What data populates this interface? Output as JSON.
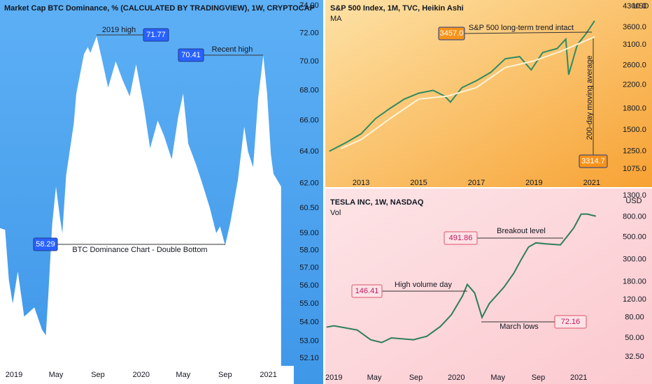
{
  "chart_data": [
    {
      "type": "area",
      "title": "Market Cap BTC Dominance, % (CALCULATED BY TRADINGVIEW), 1W, CRYPTOCAP",
      "x": [
        2018.89,
        2018.93,
        2018.96,
        2018.99,
        2019.03,
        2019.08,
        2019.16,
        2019.22,
        2019.25,
        2019.27,
        2019.3,
        2019.33,
        2019.36,
        2019.38,
        2019.41,
        2019.47,
        2019.49,
        2019.55,
        2019.58,
        2019.6,
        2019.65,
        2019.69,
        2019.74,
        2019.8,
        2019.85,
        2019.91,
        2019.96,
        2020.02,
        2020.07,
        2020.13,
        2020.18,
        2020.24,
        2020.29,
        2020.33,
        2020.37,
        2020.43,
        2020.48,
        2020.54,
        2020.59,
        2020.62,
        2020.66,
        2020.7,
        2020.76,
        2020.81,
        2020.84,
        2020.88,
        2020.92,
        2020.96,
        2020.99,
        2021.02,
        2021.04,
        2021.1
      ],
      "values": [
        59.3,
        59.2,
        56.3,
        55.0,
        56.8,
        54.3,
        54.8,
        53.6,
        53.3,
        55.5,
        59.5,
        61.8,
        60.0,
        59.0,
        62.5,
        65.8,
        67.8,
        70.5,
        71.0,
        70.6,
        71.77,
        70.2,
        68.2,
        70.0,
        68.8,
        67.6,
        69.8,
        67.0,
        64.2,
        66.0,
        65.0,
        63.5,
        66.2,
        67.8,
        64.5,
        63.2,
        62.0,
        60.5,
        59.0,
        59.4,
        58.29,
        59.6,
        62.2,
        65.6,
        64.0,
        63.0,
        67.5,
        70.41,
        67.8,
        63.8,
        62.6,
        61.8
      ],
      "color": "#ffffff",
      "log_scale": true,
      "xlim": [
        2018.89,
        2021.2
      ],
      "xticks": [
        2019,
        {
          "value": 2019.33,
          "label": "May"
        },
        {
          "value": 2019.66,
          "label": "Sep"
        },
        2020,
        {
          "value": 2020.33,
          "label": "May"
        },
        {
          "value": 2020.66,
          "label": "Sep"
        },
        2021
      ],
      "ylim": [
        52.1,
        74
      ],
      "yticks": [
        {
          "value": 74,
          "label": "74.00"
        },
        {
          "value": 72,
          "label": "72.00"
        },
        {
          "value": 70,
          "label": "70.00"
        },
        {
          "value": 68,
          "label": "68.00"
        },
        {
          "value": 66,
          "label": "66.00"
        },
        {
          "value": 64,
          "label": "64.00"
        },
        {
          "value": 62,
          "label": "62.00"
        },
        {
          "value": 60.5,
          "label": "60.50"
        },
        {
          "value": 59,
          "label": "59.00"
        },
        {
          "value": 58,
          "label": "58.00"
        },
        {
          "value": 57,
          "label": "57.00"
        },
        {
          "value": 56,
          "label": "56.00"
        },
        {
          "value": 55,
          "label": "55.00"
        },
        {
          "value": 54,
          "label": "54.00"
        },
        {
          "value": 53,
          "label": "53.00"
        },
        {
          "value": 52.1,
          "label": "52.10"
        }
      ],
      "annotations": [
        {
          "text": "2019 high",
          "value": 71.77
        },
        {
          "text": "Recent high",
          "value": 70.41
        },
        {
          "text": "BTC Dominance Chart - Double Bottom",
          "value": 58.29
        }
      ]
    },
    {
      "type": "line",
      "title": "S&P 500 Index, 1M, TVC, Heikin Ashi",
      "subtitle": "MA",
      "currency": "USD",
      "log_scale": true,
      "series": [
        {
          "color": "#2e8b62",
          "x": [
            2011.9,
            2012.5,
            2013.0,
            2013.5,
            2014.0,
            2014.5,
            2015.0,
            2015.5,
            2015.9,
            2016.1,
            2016.5,
            2017.0,
            2017.5,
            2018.0,
            2018.5,
            2018.9,
            2019.3,
            2019.8,
            2020.1,
            2020.2,
            2020.5,
            2020.8,
            2021.1
          ],
          "values": [
            1250,
            1350,
            1450,
            1650,
            1800,
            1950,
            2050,
            2100,
            2000,
            1900,
            2150,
            2280,
            2450,
            2750,
            2800,
            2500,
            2900,
            3000,
            3250,
            2400,
            3100,
            3400,
            3800
          ]
        },
        {
          "name": "MA",
          "color": "#fff4d6",
          "x": [
            2012.3,
            2013.0,
            2014.0,
            2015.0,
            2016.0,
            2017.0,
            2018.0,
            2019.0,
            2020.0,
            2021.1
          ],
          "values": [
            1280,
            1380,
            1650,
            1950,
            2000,
            2150,
            2550,
            2700,
            2950,
            3314.7
          ]
        }
      ],
      "xlim": [
        2011.76,
        2021.95
      ],
      "xticks": [
        2013,
        2015,
        2017,
        2019,
        2021
      ],
      "ylim": [
        1075,
        4300
      ],
      "yticks": [
        {
          "value": 4300,
          "label": "4300.0"
        },
        {
          "value": 3600,
          "label": "3600.0"
        },
        {
          "value": 3100,
          "label": "3100.0"
        },
        {
          "value": 2600,
          "label": "2600.0"
        },
        {
          "value": 2200,
          "label": "2200.0"
        },
        {
          "value": 1800,
          "label": "1800.0"
        },
        {
          "value": 1500,
          "label": "1500.0"
        },
        {
          "value": 1250,
          "label": "1250.0"
        },
        {
          "value": 1075,
          "label": "1075.0"
        }
      ],
      "annotations": [
        {
          "text": "S&P 500 long-term trend intact",
          "value": 3457,
          "label": "3457.0"
        },
        {
          "text": "200-day moving average",
          "value": 3314.7
        }
      ]
    },
    {
      "type": "line",
      "title": "TESLA INC, 1W, NASDAQ",
      "subtitle": "Vol",
      "currency": "USD",
      "log_scale": true,
      "series": [
        {
          "color": "#2e7d5b",
          "x": [
            2018.94,
            2019.0,
            2019.19,
            2019.3,
            2019.39,
            2019.47,
            2019.65,
            2019.76,
            2019.87,
            2019.96,
            2020.05,
            2020.09,
            2020.15,
            2020.21,
            2020.27,
            2020.39,
            2020.47,
            2020.53,
            2020.59,
            2020.65,
            2020.73,
            2020.85,
            2020.9,
            2020.96,
            2021.02,
            2021.07,
            2021.14
          ],
          "values": [
            64,
            66,
            60,
            48,
            45,
            50,
            48,
            52,
            65,
            85,
            130,
            170,
            140,
            80,
            110,
            160,
            220,
            300,
            400,
            440,
            430,
            420,
            500,
            620,
            850,
            850,
            810
          ]
        }
      ],
      "xlim": [
        2018.93,
        2021.33
      ],
      "xticks": [
        2019,
        {
          "value": 2019.33,
          "label": "May"
        },
        {
          "value": 2019.67,
          "label": "Sep"
        },
        2020,
        {
          "value": 2020.34,
          "label": "May"
        },
        {
          "value": 2020.67,
          "label": "Sep"
        },
        2021
      ],
      "ylim": [
        32.5,
        1300
      ],
      "yticks": [
        {
          "value": 1300,
          "label": "1300.0"
        },
        {
          "value": 800,
          "label": "800.00"
        },
        {
          "value": 500,
          "label": "500.00"
        },
        {
          "value": 300,
          "label": "300.00"
        },
        {
          "value": 180,
          "label": "180.00"
        },
        {
          "value": 120,
          "label": "120.00"
        },
        {
          "value": 80,
          "label": "80.00"
        },
        {
          "value": 50,
          "label": "50.00"
        },
        {
          "value": 32.5,
          "label": "32.50"
        }
      ],
      "annotations": [
        {
          "text": "High volume day",
          "value": 146.41
        },
        {
          "text": "Breakout level",
          "value": 491.86
        },
        {
          "text": "March lows",
          "value": 72.16
        }
      ]
    }
  ]
}
